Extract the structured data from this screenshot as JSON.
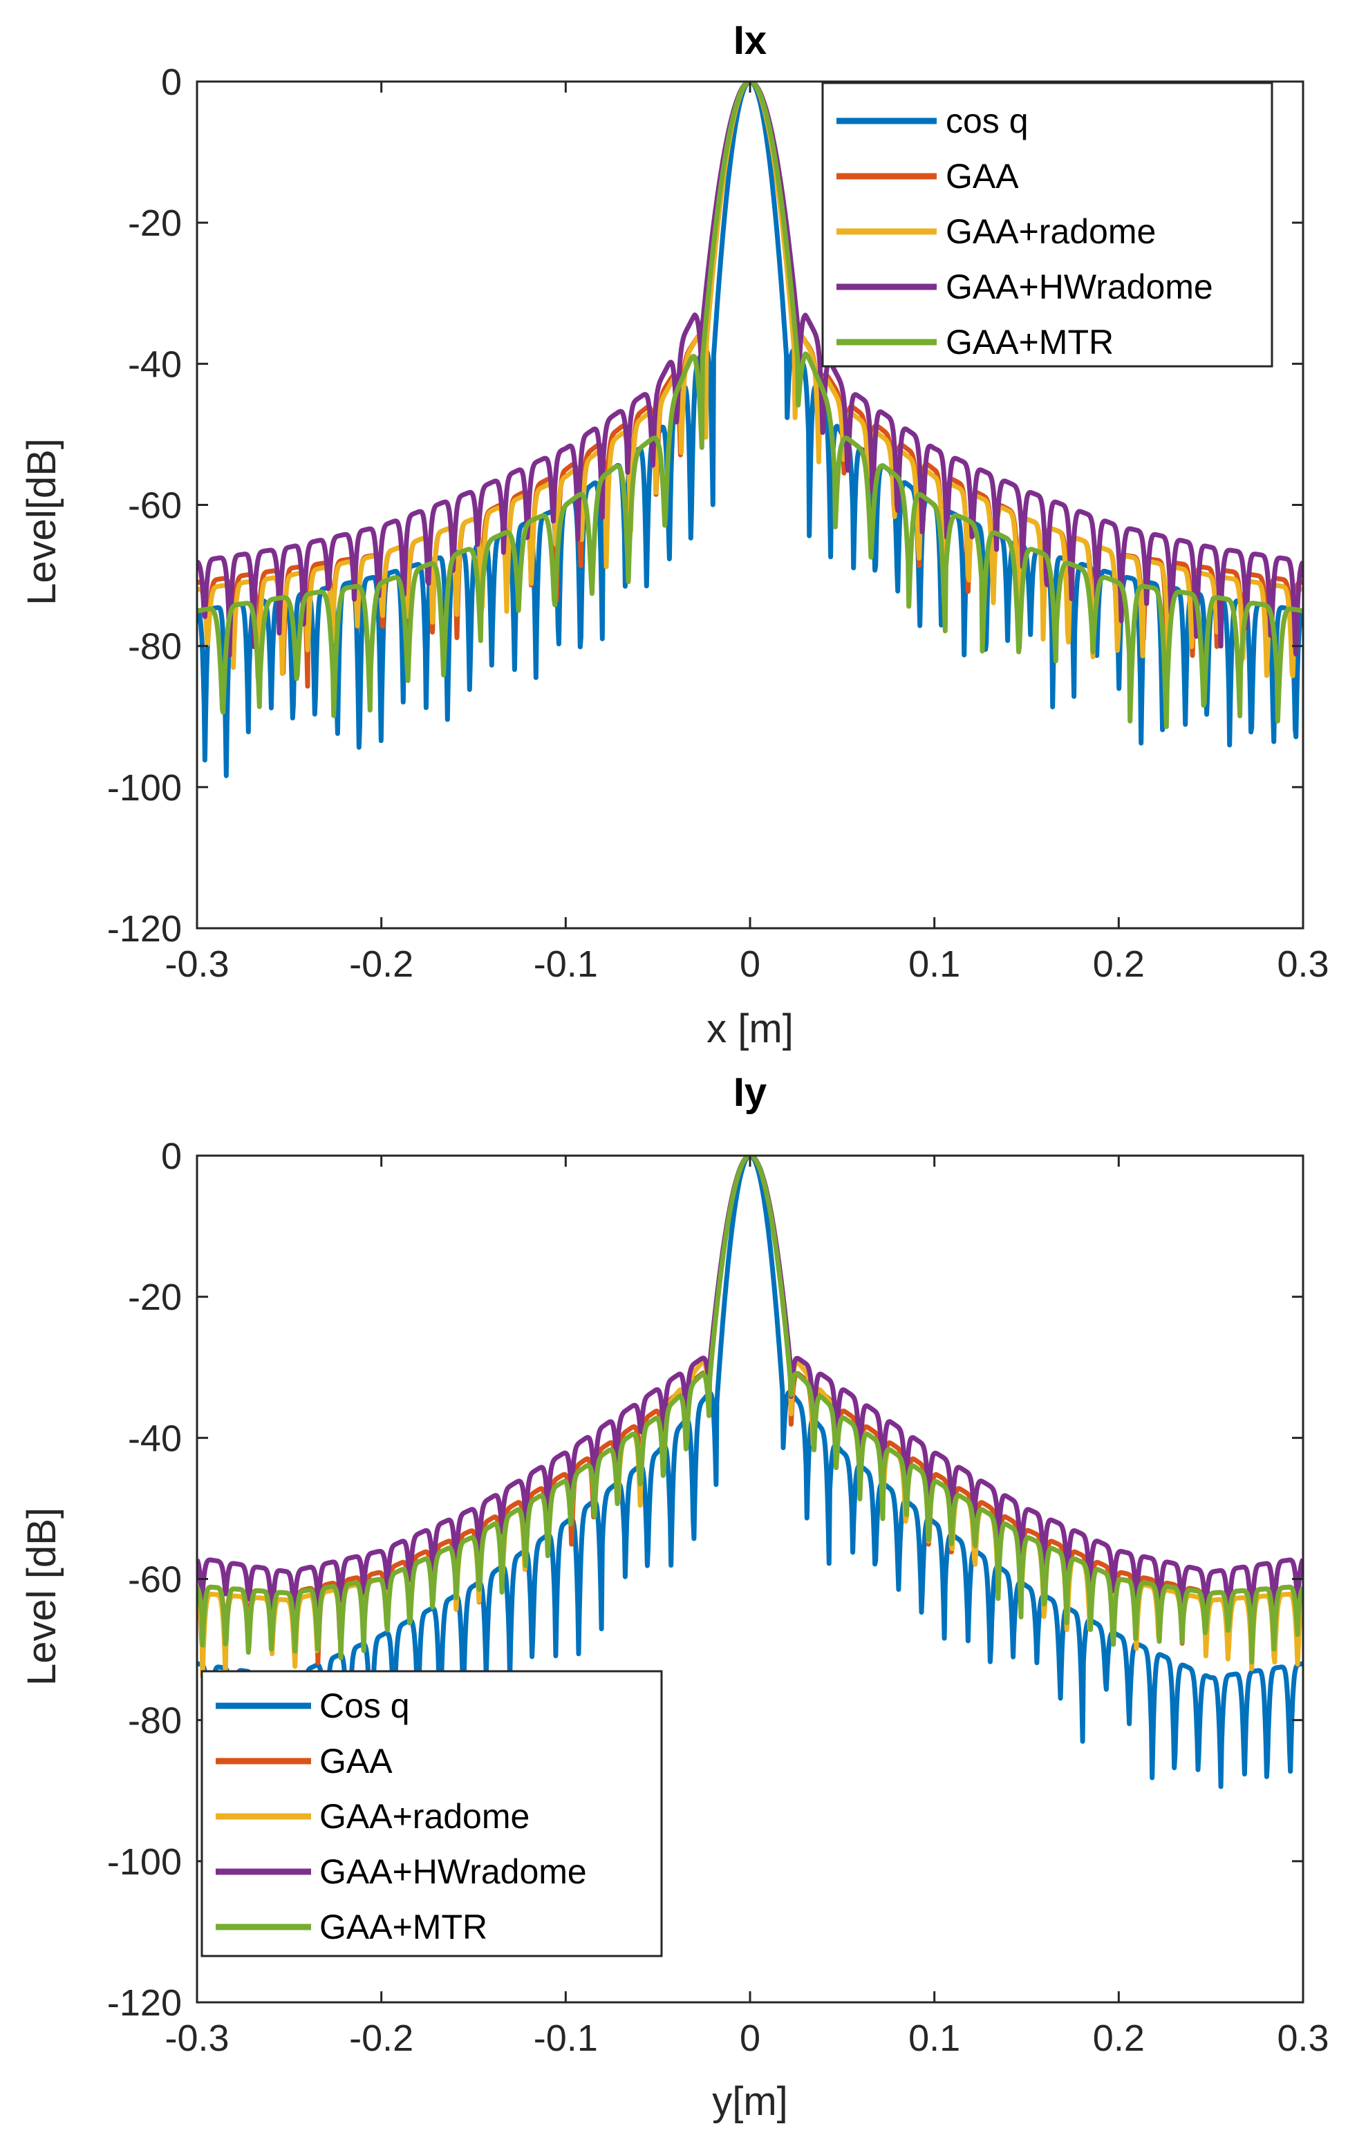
{
  "chart_data": [
    {
      "type": "line",
      "title": "Ix",
      "xlabel": "x [m]",
      "ylabel": "Level[dB]",
      "xlim": [
        -0.3,
        0.3
      ],
      "ylim": [
        -120,
        0
      ],
      "xticks": [
        -0.3,
        -0.2,
        -0.1,
        0,
        0.1,
        0.2,
        0.3
      ],
      "xtick_labels": [
        "-0.3",
        "-0.2",
        "-0.1",
        "0",
        "0.1",
        "0.2",
        "0.3"
      ],
      "yticks": [
        0,
        -20,
        -40,
        -60,
        -80,
        -100,
        -120
      ],
      "ytick_labels": [
        "0",
        "-20",
        "-40",
        "-60",
        "-80",
        "-100",
        "-120"
      ],
      "grid": false,
      "legend_position": "top-right",
      "series": [
        {
          "name": "cos q",
          "color": "#0072BD",
          "mainlobe_halfwidth": 0.02,
          "peak": 0,
          "sidelobe_points": [
            [
              0.025,
              -38
            ],
            [
              0.05,
              -50
            ],
            [
              0.1,
              -60
            ],
            [
              0.15,
              -66
            ],
            [
              0.2,
              -70
            ],
            [
              0.25,
              -73
            ],
            [
              0.3,
              -75
            ]
          ],
          "sidelobe_period": 0.012,
          "null_depth": 18
        },
        {
          "name": "GAA",
          "color": "#D95319",
          "mainlobe_halfwidth": 0.024,
          "peak": 0,
          "sidelobe_points": [
            [
              0.028,
              -36
            ],
            [
              0.05,
              -45
            ],
            [
              0.1,
              -55
            ],
            [
              0.15,
              -62
            ],
            [
              0.2,
              -67
            ],
            [
              0.25,
              -69
            ],
            [
              0.3,
              -71
            ]
          ],
          "sidelobe_period": 0.0135,
          "null_depth": 12
        },
        {
          "name": "GAA+radome",
          "color": "#EDB120",
          "mainlobe_halfwidth": 0.024,
          "peak": 0,
          "sidelobe_points": [
            [
              0.028,
              -36
            ],
            [
              0.05,
              -46
            ],
            [
              0.1,
              -56
            ],
            [
              0.15,
              -62
            ],
            [
              0.2,
              -67
            ],
            [
              0.25,
              -70
            ],
            [
              0.3,
              -72
            ]
          ],
          "sidelobe_period": 0.0135,
          "null_depth": 12
        },
        {
          "name": "GAA+HWradome",
          "color": "#7E2F8E",
          "mainlobe_halfwidth": 0.026,
          "peak": 0,
          "sidelobe_points": [
            [
              0.03,
              -33
            ],
            [
              0.05,
              -43
            ],
            [
              0.1,
              -52
            ],
            [
              0.15,
              -58
            ],
            [
              0.2,
              -63
            ],
            [
              0.25,
              -66
            ],
            [
              0.3,
              -68
            ]
          ],
          "sidelobe_period": 0.0135,
          "null_depth": 10
        },
        {
          "name": "GAA+MTR",
          "color": "#77AC30",
          "mainlobe_halfwidth": 0.026,
          "peak": 0,
          "sidelobe_points": [
            [
              0.03,
              -38
            ],
            [
              0.05,
              -50
            ],
            [
              0.1,
              -60
            ],
            [
              0.15,
              -66
            ],
            [
              0.2,
              -71
            ],
            [
              0.25,
              -73
            ],
            [
              0.3,
              -75
            ]
          ],
          "sidelobe_period": 0.02,
          "null_depth": 14
        }
      ]
    },
    {
      "type": "line",
      "title": "Iy",
      "xlabel": "y[m]",
      "ylabel": "Level [dB]",
      "xlim": [
        -0.3,
        0.3
      ],
      "ylim": [
        -120,
        0
      ],
      "xticks": [
        -0.3,
        -0.2,
        -0.1,
        0,
        0.1,
        0.2,
        0.3
      ],
      "xtick_labels": [
        "-0.3",
        "-0.2",
        "-0.1",
        "0",
        "0.1",
        "0.2",
        "0.3"
      ],
      "yticks": [
        0,
        -20,
        -40,
        -60,
        -80,
        -100,
        -120
      ],
      "ytick_labels": [
        "0",
        "-20",
        "-40",
        "-60",
        "-80",
        "-100",
        "-120"
      ],
      "grid": false,
      "legend_position": "bottom-left",
      "series": [
        {
          "name": "Cos q",
          "color": "#0072BD",
          "mainlobe_halfwidth": 0.018,
          "peak": 0,
          "sidelobe_points": [
            [
              0.02,
              -33
            ],
            [
              0.05,
              -42
            ],
            [
              0.1,
              -52
            ],
            [
              0.15,
              -61
            ],
            [
              0.2,
              -68
            ],
            [
              0.25,
              -74
            ],
            [
              0.3,
              -72
            ]
          ],
          "sidelobe_period": 0.0125,
          "null_depth": 14
        },
        {
          "name": "GAA",
          "color": "#D95319",
          "mainlobe_halfwidth": 0.022,
          "peak": 0,
          "sidelobe_points": [
            [
              0.022,
              -30
            ],
            [
              0.05,
              -36
            ],
            [
              0.1,
              -45
            ],
            [
              0.15,
              -53
            ],
            [
              0.2,
              -59
            ],
            [
              0.25,
              -62
            ],
            [
              0.3,
              -61
            ]
          ],
          "sidelobe_period": 0.0125,
          "null_depth": 8
        },
        {
          "name": "GAA+radome",
          "color": "#EDB120",
          "mainlobe_halfwidth": 0.022,
          "peak": 0,
          "sidelobe_points": [
            [
              0.022,
              -28
            ],
            [
              0.05,
              -37
            ],
            [
              0.1,
              -46
            ],
            [
              0.15,
              -54
            ],
            [
              0.2,
              -60
            ],
            [
              0.25,
              -63
            ],
            [
              0.3,
              -62
            ]
          ],
          "sidelobe_period": 0.0125,
          "null_depth": 8
        },
        {
          "name": "GAA+HWradome",
          "color": "#7E2F8E",
          "mainlobe_halfwidth": 0.022,
          "peak": 0,
          "sidelobe_points": [
            [
              0.022,
              -28
            ],
            [
              0.05,
              -33
            ],
            [
              0.1,
              -42
            ],
            [
              0.15,
              -50
            ],
            [
              0.2,
              -56
            ],
            [
              0.25,
              -59
            ],
            [
              0.3,
              -57
            ]
          ],
          "sidelobe_period": 0.0125,
          "null_depth": 6
        },
        {
          "name": "GAA+MTR",
          "color": "#77AC30",
          "mainlobe_halfwidth": 0.022,
          "peak": 0,
          "sidelobe_points": [
            [
              0.022,
              -30
            ],
            [
              0.05,
              -37
            ],
            [
              0.1,
              -46
            ],
            [
              0.15,
              -54
            ],
            [
              0.2,
              -60
            ],
            [
              0.25,
              -62
            ],
            [
              0.3,
              -61
            ]
          ],
          "sidelobe_period": 0.0125,
          "null_depth": 8
        }
      ]
    }
  ]
}
